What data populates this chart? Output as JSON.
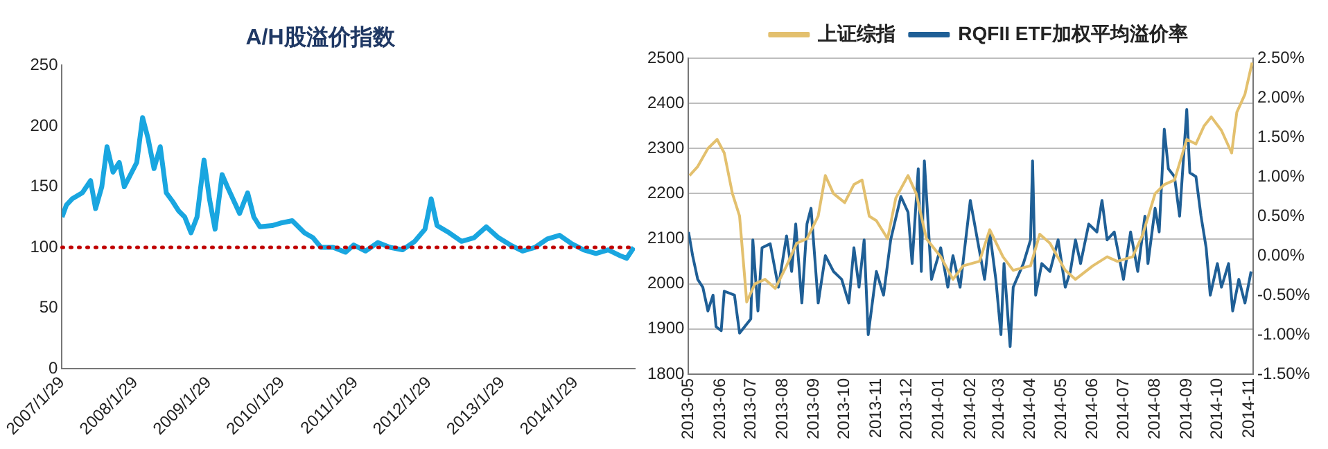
{
  "chart_data": [
    {
      "type": "line",
      "title": "A/H股溢价指数",
      "x": [
        "2007-01-29",
        "2007-02-20",
        "2007-03-20",
        "2007-05-10",
        "2007-06-20",
        "2007-07-15",
        "2007-08-15",
        "2007-09-10",
        "2007-10-10",
        "2007-11-10",
        "2007-12-05",
        "2008-01-05",
        "2008-02-05",
        "2008-03-05",
        "2008-04-01",
        "2008-05-01",
        "2008-06-01",
        "2008-07-01",
        "2008-08-01",
        "2008-09-01",
        "2008-10-01",
        "2008-11-01",
        "2008-12-01",
        "2009-01-05",
        "2009-02-01",
        "2009-03-01",
        "2009-04-05",
        "2009-05-01",
        "2009-07-01",
        "2009-08-10",
        "2009-09-10",
        "2009-10-10",
        "2009-12-10",
        "2010-01-20",
        "2010-03-20",
        "2010-05-20",
        "2010-07-01",
        "2010-08-10",
        "2010-10-10",
        "2010-12-10",
        "2011-01-20",
        "2011-03-20",
        "2011-05-20",
        "2011-07-20",
        "2011-09-20",
        "2011-11-20",
        "2012-01-10",
        "2012-02-10",
        "2012-03-10",
        "2012-05-10",
        "2012-07-10",
        "2012-09-10",
        "2012-11-10",
        "2013-01-10",
        "2013-03-10",
        "2013-05-10",
        "2013-07-10",
        "2013-09-10",
        "2013-11-10",
        "2014-01-10",
        "2014-03-10",
        "2014-05-10",
        "2014-07-10",
        "2014-09-10",
        "2014-10-10",
        "2014-11-15"
      ],
      "series": [
        {
          "color": "#19a6e0",
          "values": [
            125,
            135,
            140,
            145,
            155,
            132,
            150,
            183,
            162,
            170,
            150,
            160,
            170,
            207,
            190,
            165,
            183,
            145,
            138,
            130,
            125,
            112,
            125,
            172,
            140,
            115,
            160,
            150,
            128,
            145,
            125,
            117,
            118,
            120,
            122,
            112,
            108,
            100,
            100,
            96,
            102,
            97,
            104,
            100,
            98,
            105,
            115,
            140,
            118,
            112,
            105,
            108,
            117,
            108,
            102,
            97,
            100,
            107,
            110,
            103,
            98,
            95,
            98,
            93,
            91,
            100
          ]
        }
      ],
      "xlim": [
        "2007-01-29",
        "2014-11-20"
      ],
      "xticks": [
        {
          "value": "2007-01-29",
          "label": "2007/1/29"
        },
        {
          "value": "2008-01-29",
          "label": "2008/1/29"
        },
        {
          "value": "2009-01-29",
          "label": "2009/1/29"
        },
        {
          "value": "2010-01-29",
          "label": "2010/1/29"
        },
        {
          "value": "2011-01-29",
          "label": "2011/1/29"
        },
        {
          "value": "2012-01-29",
          "label": "2012/1/29"
        },
        {
          "value": "2013-01-29",
          "label": "2013/1/29"
        },
        {
          "value": "2014-01-29",
          "label": "2014/1/29"
        }
      ],
      "ylim": [
        0,
        250
      ],
      "yticks": [
        0,
        50,
        100,
        150,
        200,
        250
      ],
      "ref_lines": [
        {
          "axis": "y",
          "value": 100,
          "color": "#c00000",
          "line_style": "dotted"
        }
      ],
      "grid": false,
      "legend": false
    },
    {
      "type": "line",
      "series": [
        {
          "name": "上证综指",
          "color": "#e3c06e",
          "x": [
            "2013-05-02",
            "2013-05-10",
            "2013-05-20",
            "2013-05-29",
            "2013-06-05",
            "2013-06-13",
            "2013-06-20",
            "2013-06-27",
            "2013-07-05",
            "2013-07-15",
            "2013-07-25",
            "2013-08-05",
            "2013-08-15",
            "2013-08-25",
            "2013-09-05",
            "2013-09-12",
            "2013-09-20",
            "2013-10-01",
            "2013-10-10",
            "2013-10-18",
            "2013-10-25",
            "2013-11-01",
            "2013-11-12",
            "2013-11-20",
            "2013-12-02",
            "2013-12-10",
            "2013-12-20",
            "2014-01-03",
            "2014-01-15",
            "2014-01-25",
            "2014-02-10",
            "2014-02-20",
            "2014-03-05",
            "2014-03-15",
            "2014-04-01",
            "2014-04-10",
            "2014-04-20",
            "2014-05-05",
            "2014-05-15",
            "2014-06-01",
            "2014-06-15",
            "2014-06-25",
            "2014-07-10",
            "2014-07-20",
            "2014-08-01",
            "2014-08-10",
            "2014-08-20",
            "2014-09-01",
            "2014-09-10",
            "2014-09-18",
            "2014-09-25",
            "2014-10-05",
            "2014-10-15",
            "2014-10-20",
            "2014-10-28",
            "2014-11-04"
          ],
          "values": [
            2240,
            2260,
            2300,
            2320,
            2290,
            2200,
            2150,
            1960,
            2000,
            2010,
            1990,
            2040,
            2090,
            2100,
            2150,
            2240,
            2200,
            2180,
            2220,
            2230,
            2150,
            2140,
            2100,
            2190,
            2240,
            2200,
            2100,
            2060,
            2010,
            2040,
            2050,
            2120,
            2060,
            2030,
            2040,
            2110,
            2090,
            2030,
            2010,
            2040,
            2060,
            2050,
            2060,
            2110,
            2200,
            2220,
            2230,
            2320,
            2310,
            2350,
            2370,
            2340,
            2290,
            2380,
            2420,
            2490
          ]
        },
        {
          "name": "RQFII ETF加权平均溢价率",
          "color": "#1f5f96",
          "axis": "y2",
          "x": [
            "2013-05-01",
            "2013-05-05",
            "2013-05-10",
            "2013-05-15",
            "2013-05-20",
            "2013-05-25",
            "2013-05-28",
            "2013-06-02",
            "2013-06-05",
            "2013-06-15",
            "2013-06-20",
            "2013-07-01",
            "2013-07-03",
            "2013-07-08",
            "2013-07-12",
            "2013-07-20",
            "2013-07-28",
            "2013-08-05",
            "2013-08-10",
            "2013-08-14",
            "2013-08-20",
            "2013-08-25",
            "2013-08-29",
            "2013-09-05",
            "2013-09-12",
            "2013-09-20",
            "2013-09-28",
            "2013-10-05",
            "2013-10-10",
            "2013-10-15",
            "2013-10-20",
            "2013-10-24",
            "2013-11-01",
            "2013-11-08",
            "2013-11-15",
            "2013-11-25",
            "2013-12-02",
            "2013-12-06",
            "2013-12-12",
            "2013-12-15",
            "2013-12-18",
            "2013-12-25",
            "2014-01-03",
            "2014-01-10",
            "2014-01-15",
            "2014-01-22",
            "2014-02-01",
            "2014-02-08",
            "2014-02-15",
            "2014-02-20",
            "2014-02-26",
            "2014-03-03",
            "2014-03-06",
            "2014-03-12",
            "2014-03-15",
            "2014-03-25",
            "2014-04-01",
            "2014-04-03",
            "2014-04-06",
            "2014-04-12",
            "2014-04-20",
            "2014-04-28",
            "2014-05-05",
            "2014-05-10",
            "2014-05-15",
            "2014-05-20",
            "2014-05-28",
            "2014-06-05",
            "2014-06-10",
            "2014-06-15",
            "2014-06-22",
            "2014-07-01",
            "2014-07-08",
            "2014-07-15",
            "2014-07-22",
            "2014-07-25",
            "2014-08-01",
            "2014-08-05",
            "2014-08-10",
            "2014-08-14",
            "2014-08-20",
            "2014-08-25",
            "2014-09-01",
            "2014-09-04",
            "2014-09-10",
            "2014-09-15",
            "2014-09-20",
            "2014-09-24",
            "2014-10-01",
            "2014-10-05",
            "2014-10-12",
            "2014-10-16",
            "2014-10-22",
            "2014-10-28",
            "2014-11-03"
          ],
          "values": [
            0.3,
            0.0,
            -0.3,
            -0.4,
            -0.7,
            -0.5,
            -0.9,
            -0.95,
            -0.45,
            -0.5,
            -0.98,
            -0.8,
            0.2,
            -0.7,
            0.1,
            0.15,
            -0.4,
            0.25,
            -0.2,
            0.4,
            -0.6,
            0.4,
            0.6,
            -0.6,
            0.0,
            -0.2,
            -0.3,
            -0.6,
            0.1,
            -0.4,
            0.2,
            -1.0,
            -0.2,
            -0.5,
            0.2,
            0.75,
            0.55,
            -0.1,
            1.1,
            -0.2,
            1.2,
            -0.3,
            0.1,
            -0.4,
            0.0,
            -0.4,
            0.7,
            0.2,
            -0.3,
            0.3,
            -0.3,
            -1.0,
            -0.1,
            -1.15,
            -0.4,
            -0.1,
            0.2,
            1.2,
            -0.5,
            -0.1,
            -0.2,
            0.2,
            -0.4,
            -0.2,
            0.2,
            -0.1,
            0.4,
            0.3,
            0.7,
            0.2,
            0.3,
            -0.3,
            0.3,
            -0.2,
            0.5,
            -0.1,
            0.6,
            0.3,
            1.6,
            1.1,
            1.0,
            0.5,
            1.85,
            1.05,
            1.0,
            0.5,
            0.1,
            -0.5,
            -0.1,
            -0.4,
            -0.1,
            -0.7,
            -0.3,
            -0.6,
            -0.2
          ]
        }
      ],
      "xlim": [
        "2013-05-01",
        "2014-11-05"
      ],
      "xticks": [
        "2013-05",
        "2013-06",
        "2013-07",
        "2013-08",
        "2013-09",
        "2013-10",
        "2013-11",
        "2013-12",
        "2014-01",
        "2014-02",
        "2014-03",
        "2014-04",
        "2014-05",
        "2014-06",
        "2014-07",
        "2014-08",
        "2014-09",
        "2014-10",
        "2014-11"
      ],
      "ylim": [
        1800,
        2500
      ],
      "yticks": [
        1800,
        1900,
        2000,
        2100,
        2200,
        2300,
        2400,
        2500
      ],
      "y2lim": [
        -1.5,
        2.5
      ],
      "y2ticks": [
        {
          "value": -1.5,
          "label": "-1.50%"
        },
        {
          "value": -1.0,
          "label": "-1.00%"
        },
        {
          "value": -0.5,
          "label": "-0.50%"
        },
        {
          "value": 0,
          "label": "0.00%"
        },
        {
          "value": 0.5,
          "label": "0.50%"
        },
        {
          "value": 1.0,
          "label": "1.00%"
        },
        {
          "value": 1.5,
          "label": "1.50%"
        },
        {
          "value": 2.0,
          "label": "2.00%"
        },
        {
          "value": 2.5,
          "label": "2.50%"
        }
      ],
      "grid": "y",
      "legend": "top"
    }
  ]
}
